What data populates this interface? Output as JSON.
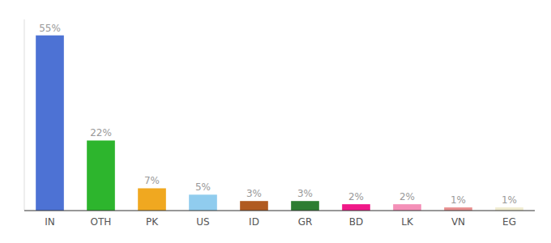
{
  "chart_data": {
    "type": "bar",
    "categories": [
      "IN",
      "OTH",
      "PK",
      "US",
      "ID",
      "GR",
      "BD",
      "LK",
      "VN",
      "EG"
    ],
    "values": [
      55,
      22,
      7,
      5,
      3,
      3,
      2,
      2,
      1,
      1
    ],
    "value_labels": [
      "55%",
      "22%",
      "7%",
      "5%",
      "3%",
      "3%",
      "2%",
      "2%",
      "1%",
      "1%"
    ],
    "colors": [
      "#4d72d4",
      "#2db52d",
      "#f0a820",
      "#90ccee",
      "#b05a20",
      "#2d7d32",
      "#f01888",
      "#f490b8",
      "#e89090",
      "#f0ecd0"
    ],
    "ylim": [
      0,
      60
    ],
    "data_labels": true,
    "tick_labels": "x",
    "grid": false
  }
}
